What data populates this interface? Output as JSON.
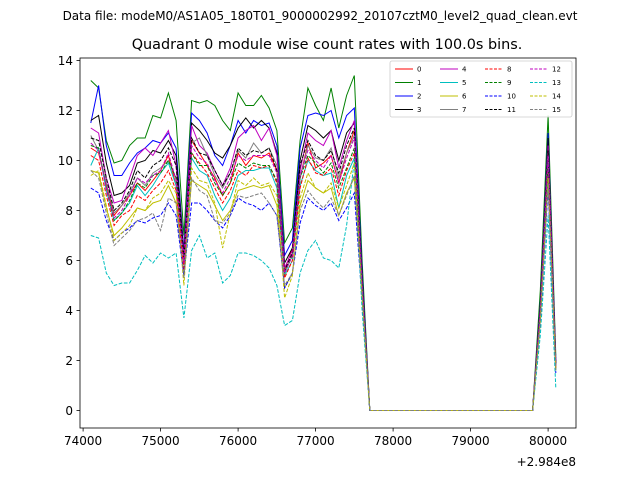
{
  "chart_data": {
    "type": "line",
    "suptitle": "Data file: modeM0/AS1A05_180T01_9000002992_20107cztM0_level2_quad_clean.evt",
    "title": "Quadrant 0 module wise count rates with 100.0s bins.",
    "xlabel": "",
    "ylabel": "",
    "x_offset_label": "+2.984e8",
    "xlim": [
      73960,
      80360
    ],
    "ylim": [
      -0.7,
      14.1
    ],
    "xticks": [
      74000,
      75000,
      76000,
      77000,
      78000,
      79000,
      80000
    ],
    "yticks": [
      0,
      2,
      4,
      6,
      8,
      10,
      12,
      14
    ],
    "grid": false,
    "legend_position": "top-right",
    "x": [
      74100,
      74200,
      74300,
      74400,
      74500,
      74600,
      74700,
      74800,
      74900,
      75000,
      75100,
      75200,
      75300,
      75400,
      75500,
      75600,
      75700,
      75800,
      75900,
      76000,
      76100,
      76200,
      76300,
      76400,
      76500,
      76600,
      76700,
      76800,
      76900,
      77000,
      77100,
      77200,
      77300,
      77400,
      77500,
      77600,
      77700,
      77800,
      77900,
      78000,
      78100,
      78200,
      78300,
      78400,
      78500,
      78600,
      78700,
      78800,
      78900,
      79000,
      79100,
      79200,
      79300,
      79400,
      79500,
      79600,
      79700,
      79800,
      79900,
      80000,
      80100
    ],
    "series": [
      {
        "name": "0",
        "color": "#ff0000",
        "dash": "solid",
        "values": [
          10.5,
          10.3,
          9.0,
          7.8,
          8.2,
          8.6,
          9.1,
          8.8,
          9.2,
          9.6,
          10.2,
          9.0,
          6.0,
          10.8,
          10.3,
          9.8,
          9.3,
          8.6,
          9.1,
          10.3,
          9.8,
          10.2,
          10.1,
          10.3,
          9.6,
          5.6,
          6.5,
          9.3,
          10.7,
          9.7,
          9.9,
          10.2,
          9.1,
          10.3,
          11.2,
          5.0,
          0,
          0,
          0,
          0,
          0,
          0,
          0,
          0,
          0,
          0,
          0,
          0,
          0,
          0,
          0,
          0,
          0,
          0,
          0,
          0,
          0,
          0,
          4.0,
          10.1,
          1.8
        ]
      },
      {
        "name": "1",
        "color": "#008000",
        "dash": "solid",
        "values": [
          13.2,
          12.9,
          10.8,
          9.9,
          10.0,
          10.6,
          10.9,
          10.9,
          11.8,
          11.7,
          12.7,
          11.6,
          7.0,
          12.4,
          12.3,
          12.4,
          12.2,
          11.6,
          11.2,
          12.7,
          12.2,
          12.2,
          12.6,
          12.1,
          11.2,
          6.7,
          7.3,
          10.8,
          12.9,
          12.2,
          11.6,
          12.9,
          11.3,
          12.6,
          13.4,
          6.0,
          0,
          0,
          0,
          0,
          0,
          0,
          0,
          0,
          0,
          0,
          0,
          0,
          0,
          0,
          0,
          0,
          0,
          0,
          0,
          0,
          0,
          0,
          4.8,
          11.8,
          2.2
        ]
      },
      {
        "name": "2",
        "color": "#0000ff",
        "dash": "solid",
        "values": [
          11.5,
          13.0,
          10.6,
          9.4,
          9.4,
          9.9,
          10.3,
          10.5,
          10.8,
          10.7,
          11.1,
          10.5,
          6.4,
          11.9,
          11.6,
          11.1,
          10.2,
          9.8,
          10.6,
          11.6,
          11.1,
          11.6,
          11.4,
          11.5,
          10.6,
          6.2,
          6.8,
          10.5,
          11.8,
          11.9,
          11.8,
          12.0,
          10.9,
          11.8,
          12.1,
          5.6,
          0,
          0,
          0,
          0,
          0,
          0,
          0,
          0,
          0,
          0,
          0,
          0,
          0,
          0,
          0,
          0,
          0,
          0,
          0,
          0,
          0,
          0,
          4.3,
          11.1,
          2.0
        ]
      },
      {
        "name": "3",
        "color": "#000000",
        "dash": "solid",
        "values": [
          11.6,
          11.8,
          9.9,
          8.6,
          8.7,
          9.0,
          9.9,
          10.0,
          10.4,
          10.3,
          10.8,
          10.2,
          6.3,
          11.5,
          11.2,
          10.8,
          10.3,
          10.1,
          10.6,
          11.3,
          11.7,
          11.3,
          11.6,
          11.3,
          10.3,
          5.9,
          6.5,
          10.0,
          11.4,
          11.2,
          10.9,
          11.2,
          10.0,
          11.1,
          11.5,
          5.4,
          0,
          0,
          0,
          0,
          0,
          0,
          0,
          0,
          0,
          0,
          0,
          0,
          0,
          0,
          0,
          0,
          0,
          0,
          0,
          0,
          0,
          0,
          4.2,
          10.9,
          1.9
        ]
      },
      {
        "name": "4",
        "color": "#bf00bf",
        "dash": "solid",
        "values": [
          11.3,
          11.1,
          9.3,
          8.3,
          8.4,
          9.3,
          10.2,
          10.5,
          10.2,
          10.7,
          11.2,
          9.8,
          6.2,
          11.4,
          10.6,
          10.3,
          9.6,
          9.0,
          9.7,
          10.9,
          11.2,
          11.4,
          10.8,
          11.3,
          10.2,
          5.7,
          6.4,
          9.6,
          11.1,
          10.8,
          10.6,
          11.2,
          9.7,
          10.8,
          11.6,
          5.2,
          0,
          0,
          0,
          0,
          0,
          0,
          0,
          0,
          0,
          0,
          0,
          0,
          0,
          0,
          0,
          0,
          0,
          0,
          0,
          0,
          0,
          0,
          4.1,
          10.6,
          1.9
        ]
      },
      {
        "name": "5",
        "color": "#00bfbf",
        "dash": "solid",
        "values": [
          9.8,
          10.5,
          8.8,
          7.6,
          7.9,
          8.3,
          9.0,
          8.6,
          9.0,
          9.5,
          9.9,
          9.0,
          5.8,
          10.1,
          9.6,
          9.4,
          8.6,
          8.0,
          8.5,
          9.4,
          9.6,
          9.6,
          9.7,
          9.7,
          8.9,
          5.4,
          6.0,
          9.0,
          10.0,
          9.6,
          9.4,
          9.5,
          8.1,
          9.4,
          10.1,
          4.9,
          0,
          0,
          0,
          0,
          0,
          0,
          0,
          0,
          0,
          0,
          0,
          0,
          0,
          0,
          0,
          0,
          0,
          0,
          0,
          0,
          0,
          0,
          3.8,
          9.9,
          1.7
        ]
      },
      {
        "name": "6",
        "color": "#bfbf00",
        "dash": "solid",
        "values": [
          9.6,
          9.5,
          8.1,
          7.0,
          7.3,
          7.7,
          8.1,
          8.0,
          8.3,
          8.4,
          9.0,
          8.3,
          5.4,
          9.2,
          9.0,
          8.8,
          8.2,
          7.6,
          8.0,
          8.8,
          8.9,
          9.0,
          8.9,
          9.0,
          8.2,
          4.9,
          5.5,
          8.2,
          9.2,
          8.9,
          8.7,
          8.9,
          7.8,
          8.7,
          9.3,
          4.5,
          0,
          0,
          0,
          0,
          0,
          0,
          0,
          0,
          0,
          0,
          0,
          0,
          0,
          0,
          0,
          0,
          0,
          0,
          0,
          0,
          0,
          0,
          3.6,
          9.3,
          1.6
        ]
      },
      {
        "name": "7",
        "color": "#808080",
        "dash": "solid",
        "values": [
          11.0,
          10.4,
          9.1,
          7.9,
          8.2,
          8.7,
          9.3,
          9.0,
          9.5,
          9.7,
          10.0,
          9.3,
          5.8,
          10.7,
          10.9,
          10.2,
          9.4,
          8.9,
          9.5,
          10.4,
          10.1,
          10.7,
          10.3,
          10.5,
          9.8,
          5.5,
          6.2,
          9.3,
          10.6,
          10.1,
          10.0,
          10.5,
          9.3,
          10.3,
          11.0,
          5.1,
          0,
          0,
          0,
          0,
          0,
          0,
          0,
          0,
          0,
          0,
          0,
          0,
          0,
          0,
          0,
          0,
          0,
          0,
          0,
          0,
          0,
          0,
          4.0,
          10.3,
          1.8
        ]
      },
      {
        "name": "8",
        "color": "#ff0000",
        "dash": "dashed",
        "values": [
          10.2,
          10.0,
          8.6,
          7.4,
          7.8,
          8.0,
          8.6,
          8.4,
          8.8,
          9.1,
          9.6,
          8.8,
          5.6,
          10.3,
          9.9,
          9.5,
          8.9,
          8.3,
          8.8,
          9.6,
          9.4,
          9.8,
          9.7,
          9.8,
          9.1,
          5.3,
          6.0,
          8.9,
          10.1,
          9.5,
          9.4,
          9.7,
          8.6,
          9.6,
          10.3,
          4.8,
          0,
          0,
          0,
          0,
          0,
          0,
          0,
          0,
          0,
          0,
          0,
          0,
          0,
          0,
          0,
          0,
          0,
          0,
          0,
          0,
          0,
          0,
          3.9,
          9.7,
          1.7
        ]
      },
      {
        "name": "9",
        "color": "#008000",
        "dash": "dashed",
        "values": [
          10.6,
          10.5,
          8.9,
          7.6,
          7.9,
          8.4,
          9.1,
          8.9,
          9.4,
          9.5,
          10.0,
          9.3,
          6.0,
          10.3,
          9.8,
          9.8,
          9.1,
          8.6,
          9.1,
          9.9,
          9.7,
          9.9,
          9.8,
          9.8,
          9.2,
          5.5,
          6.2,
          9.3,
          10.2,
          9.9,
          9.5,
          9.9,
          8.9,
          9.7,
          10.5,
          5.0,
          0,
          0,
          0,
          0,
          0,
          0,
          0,
          0,
          0,
          0,
          0,
          0,
          0,
          0,
          0,
          0,
          0,
          0,
          0,
          0,
          0,
          0,
          3.9,
          9.9,
          1.8
        ]
      },
      {
        "name": "10",
        "color": "#0000ff",
        "dash": "dashed",
        "values": [
          8.9,
          8.7,
          7.6,
          6.8,
          7.1,
          7.3,
          7.6,
          7.5,
          7.7,
          7.8,
          8.3,
          7.8,
          5.4,
          8.3,
          8.3,
          8.0,
          7.6,
          7.3,
          7.8,
          8.5,
          8.3,
          8.2,
          8.0,
          8.3,
          7.8,
          4.9,
          5.5,
          7.5,
          8.5,
          8.2,
          8.0,
          8.3,
          7.6,
          8.1,
          8.7,
          4.4,
          0,
          0,
          0,
          0,
          0,
          0,
          0,
          0,
          0,
          0,
          0,
          0,
          0,
          0,
          0,
          0,
          0,
          0,
          0,
          0,
          0,
          0,
          3.5,
          8.9,
          1.5
        ]
      },
      {
        "name": "11",
        "color": "#000000",
        "dash": "dashed",
        "values": [
          10.9,
          10.8,
          9.3,
          8.0,
          8.3,
          8.8,
          9.6,
          9.3,
          9.8,
          10.0,
          10.5,
          9.8,
          6.1,
          10.9,
          10.3,
          10.2,
          9.6,
          9.0,
          9.5,
          10.5,
          10.2,
          10.4,
          10.3,
          10.5,
          9.6,
          5.6,
          6.3,
          9.8,
          10.8,
          10.2,
          10.0,
          10.4,
          9.5,
          10.6,
          11.3,
          5.2,
          0,
          0,
          0,
          0,
          0,
          0,
          0,
          0,
          0,
          0,
          0,
          0,
          0,
          0,
          0,
          0,
          0,
          0,
          0,
          0,
          0,
          0,
          4.1,
          10.4,
          1.9
        ]
      },
      {
        "name": "12",
        "color": "#bf00bf",
        "dash": "dashed",
        "values": [
          10.7,
          10.4,
          8.9,
          7.7,
          8.0,
          8.6,
          9.3,
          9.1,
          9.4,
          9.6,
          10.3,
          9.2,
          5.9,
          10.6,
          10.1,
          9.9,
          9.2,
          8.7,
          9.3,
          10.2,
          10.0,
          10.2,
          10.2,
          10.2,
          9.5,
          5.5,
          6.2,
          9.4,
          10.4,
          10.0,
          9.7,
          10.2,
          9.1,
          10.1,
          10.9,
          5.1,
          0,
          0,
          0,
          0,
          0,
          0,
          0,
          0,
          0,
          0,
          0,
          0,
          0,
          0,
          0,
          0,
          0,
          0,
          0,
          0,
          0,
          0,
          4.0,
          10.2,
          1.8
        ]
      },
      {
        "name": "13",
        "color": "#00bfbf",
        "dash": "dashed",
        "values": [
          7.0,
          6.9,
          5.5,
          5.0,
          5.1,
          5.1,
          5.6,
          6.2,
          5.9,
          6.3,
          6.1,
          6.3,
          3.7,
          6.4,
          7.0,
          6.1,
          6.3,
          5.1,
          5.4,
          6.3,
          6.3,
          6.2,
          6.0,
          5.7,
          5.0,
          3.4,
          3.6,
          5.5,
          6.4,
          6.8,
          6.1,
          6.0,
          5.7,
          7.4,
          10.0,
          4.0,
          0,
          0,
          0,
          0,
          0,
          0,
          0,
          0,
          0,
          0,
          0,
          0,
          0,
          0,
          0,
          0,
          0,
          0,
          0,
          0,
          0,
          0,
          3.0,
          7.8,
          0.9
        ]
      },
      {
        "name": "14",
        "color": "#bfbf00",
        "dash": "dashed",
        "values": [
          9.4,
          9.6,
          8.2,
          6.8,
          7.1,
          7.4,
          8.1,
          8.0,
          8.5,
          8.7,
          9.2,
          8.7,
          5.0,
          9.7,
          9.2,
          9.1,
          8.3,
          6.5,
          7.9,
          9.2,
          9.0,
          9.3,
          9.0,
          9.1,
          8.6,
          4.5,
          5.4,
          8.5,
          9.5,
          8.9,
          8.7,
          9.1,
          8.1,
          9.0,
          9.9,
          4.6,
          0,
          0,
          0,
          0,
          0,
          0,
          0,
          0,
          0,
          0,
          0,
          0,
          0,
          0,
          0,
          0,
          0,
          0,
          0,
          0,
          0,
          0,
          3.6,
          9.3,
          1.6
        ]
      },
      {
        "name": "15",
        "color": "#808080",
        "dash": "dashed",
        "values": [
          9.6,
          9.3,
          7.9,
          6.6,
          6.9,
          7.2,
          7.6,
          7.7,
          7.9,
          7.2,
          8.5,
          8.3,
          5.3,
          9.3,
          8.8,
          8.6,
          7.6,
          7.5,
          7.9,
          8.6,
          8.5,
          8.6,
          8.7,
          8.3,
          7.8,
          5.0,
          5.5,
          8.0,
          8.8,
          8.4,
          8.1,
          8.5,
          7.8,
          8.6,
          9.4,
          4.6,
          0,
          0,
          0,
          0,
          0,
          0,
          0,
          0,
          0,
          0,
          0,
          0,
          0,
          0,
          0,
          0,
          0,
          0,
          0,
          0,
          0,
          0,
          3.6,
          9.1,
          1.6
        ]
      }
    ]
  }
}
